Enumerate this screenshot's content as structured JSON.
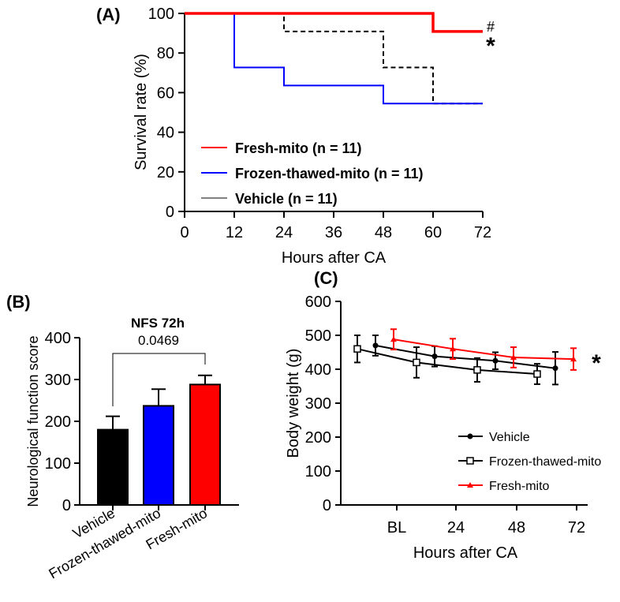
{
  "chart_data": [
    {
      "panel": "(A)",
      "type": "line",
      "step": true,
      "xlabel": "Hours after CA",
      "ylabel": "Survival rate (%)",
      "xlim": [
        0,
        72
      ],
      "ylim": [
        0,
        100
      ],
      "xticks": [
        0,
        12,
        24,
        36,
        48,
        60,
        72
      ],
      "yticks": [
        0,
        20,
        40,
        60,
        80,
        100
      ],
      "legend_position": "bottom-left",
      "annotations": [
        "#",
        "*"
      ],
      "series": [
        {
          "name": "Fresh-mito (n = 11)",
          "color": "#ff0000",
          "style": "solid",
          "x": [
            0,
            60,
            60,
            72
          ],
          "y": [
            100,
            100,
            90.9,
            90.9
          ]
        },
        {
          "name": "Frozen-thawed-mito (n = 11)",
          "color": "#0000ff",
          "style": "solid",
          "x": [
            0,
            12,
            12,
            24,
            24,
            48,
            48,
            72
          ],
          "y": [
            100,
            100,
            72.7,
            72.7,
            63.6,
            63.6,
            54.5,
            54.5
          ]
        },
        {
          "name": "Vehicle (n = 11)",
          "color": "#000000",
          "style": "dashed",
          "x": [
            0,
            24,
            24,
            48,
            48,
            60,
            60,
            72
          ],
          "y": [
            100,
            100,
            90.9,
            90.9,
            72.7,
            72.7,
            54.5,
            54.5
          ]
        }
      ]
    },
    {
      "panel": "(B)",
      "type": "bar",
      "title": "NFS 72h",
      "ylabel": "Neurological function score",
      "ylim": [
        0,
        400
      ],
      "yticks": [
        0,
        100,
        200,
        300,
        400
      ],
      "categories": [
        "Vehicle",
        "Frozen-thawed-mito",
        "Fresh-mito"
      ],
      "values": [
        180,
        237,
        288
      ],
      "errors": [
        32,
        40,
        22
      ],
      "colors": [
        "#000000",
        "#0000ff",
        "#ff0000"
      ],
      "comparison": {
        "from": 0,
        "to": 2,
        "label": "0.0469"
      }
    },
    {
      "panel": "(C)",
      "type": "line",
      "xlabel": "Hours after CA",
      "ylabel": "Body weight (g)",
      "ylim": [
        0,
        600
      ],
      "yticks": [
        0,
        100,
        200,
        300,
        400,
        500,
        600
      ],
      "xticklabels": [
        "BL",
        "24",
        "48",
        "72"
      ],
      "legend_position": "bottom-right",
      "annotations": [
        "*"
      ],
      "series": [
        {
          "name": "Vehicle",
          "color": "#000000",
          "marker": "dot",
          "values": [
            470,
            438,
            425,
            403
          ],
          "errors": [
            30,
            30,
            25,
            48
          ]
        },
        {
          "name": "Frozen-thawed-mito",
          "color": "#000000",
          "marker": "square",
          "values": [
            460,
            420,
            398,
            386
          ],
          "errors": [
            40,
            45,
            35,
            30
          ]
        },
        {
          "name": "Fresh-mito",
          "color": "#ff0000",
          "marker": "triangle",
          "values": [
            488,
            460,
            435,
            430
          ],
          "errors": [
            30,
            30,
            30,
            32
          ]
        }
      ]
    }
  ]
}
